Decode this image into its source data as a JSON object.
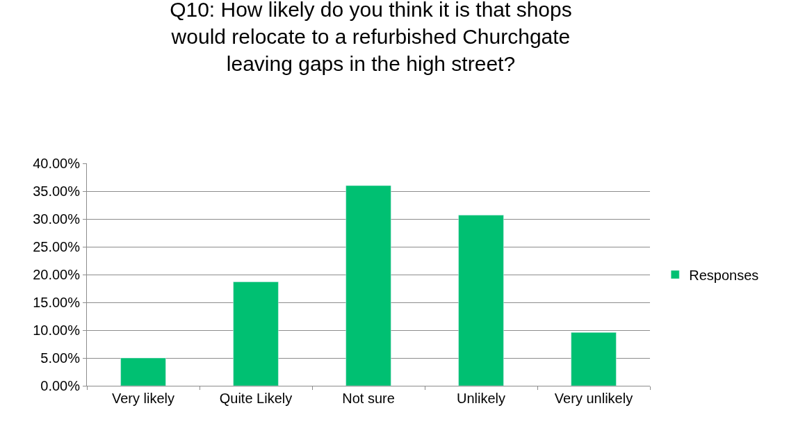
{
  "chart_data": {
    "type": "bar",
    "title": "Q10: How likely do you think it is that shops would relocate to a refurbished Churchgate leaving gaps in the high street?",
    "categories": [
      "Very likely",
      "Quite Likely",
      "Not sure",
      "Unlikely",
      "Very unlikely"
    ],
    "series": [
      {
        "name": "Responses",
        "color": "#00c072",
        "values": [
          5.0,
          18.7,
          36.0,
          30.7,
          9.6
        ]
      }
    ],
    "ylim": [
      0,
      40
    ],
    "yticks": [
      {
        "value": 0,
        "label": "0.00%"
      },
      {
        "value": 5,
        "label": "5.00%"
      },
      {
        "value": 10,
        "label": "10.00%"
      },
      {
        "value": 15,
        "label": "15.00%"
      },
      {
        "value": 20,
        "label": "20.00%"
      },
      {
        "value": 25,
        "label": "25.00%"
      },
      {
        "value": 30,
        "label": "30.00%"
      },
      {
        "value": 35,
        "label": "35.00%"
      },
      {
        "value": 40,
        "label": "40.00%"
      }
    ],
    "grid": "y",
    "legend": "right"
  }
}
